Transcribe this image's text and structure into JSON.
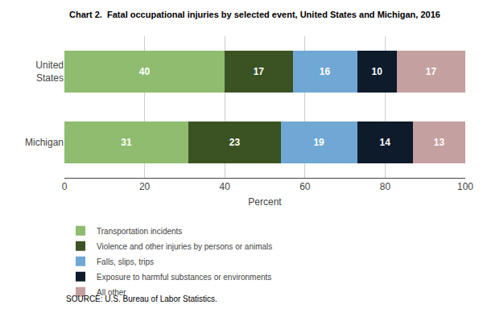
{
  "chart_data": {
    "type": "bar",
    "orientation": "horizontal",
    "stacked": true,
    "title": "Chart 2.  Fatal occupational injuries by selected event, United States and Michigan, 2016",
    "categories": [
      "United\nStates",
      "Michigan"
    ],
    "series": [
      {
        "name": "Transportation incidents",
        "values": [
          40,
          31
        ],
        "color": "#8fbc6e"
      },
      {
        "name": "Violence and other injuries by persons or animals",
        "values": [
          17,
          23
        ],
        "color": "#3b5323"
      },
      {
        "name": "Falls, slips, trips",
        "values": [
          16,
          19
        ],
        "color": "#6fa8d4"
      },
      {
        "name": "Exposure to harmful substances or environments",
        "values": [
          10,
          14
        ],
        "color": "#0d1b2a"
      },
      {
        "name": "All other",
        "values": [
          17,
          13
        ],
        "color": "#c4a0a0"
      }
    ],
    "x_label": "Percent",
    "xlim": [
      0,
      100
    ],
    "xticks": [
      0,
      20,
      40,
      60,
      80,
      100
    ],
    "grid": true,
    "data_labels": true,
    "legend": "bottom",
    "annotations": [
      "SOURCE: U.S. Bureau of Labor Statistics."
    ]
  }
}
